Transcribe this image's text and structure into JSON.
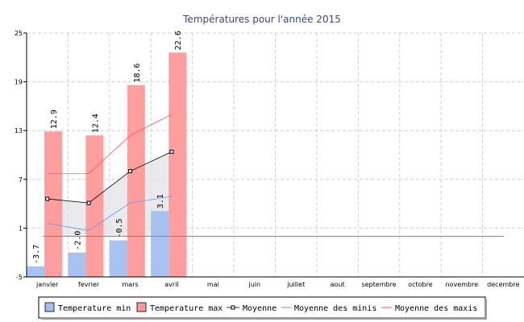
{
  "chart_data": {
    "type": "bar",
    "title": "Températures pour l'année 2015",
    "categories": [
      "janvier",
      "fevrier",
      "mars",
      "avril",
      "mai",
      "juin",
      "juillet",
      "aout",
      "septembre",
      "octobre",
      "novembre",
      "decembre"
    ],
    "series": [
      {
        "name": "Temperature min",
        "kind": "bar",
        "color": "#a3bff0",
        "values": [
          -3.7,
          -2.0,
          -0.5,
          3.1,
          null,
          null,
          null,
          null,
          null,
          null,
          null,
          null
        ],
        "labels": [
          "-3.7",
          "-2.0",
          "-0.5",
          "3.1"
        ]
      },
      {
        "name": "Temperature max",
        "kind": "bar",
        "color": "#ff9999",
        "values": [
          12.9,
          12.4,
          18.6,
          22.6,
          null,
          null,
          null,
          null,
          null,
          null,
          null,
          null
        ],
        "labels": [
          "12.9",
          "12.4",
          "18.6",
          "22.6"
        ]
      },
      {
        "name": "Moyenne",
        "kind": "line",
        "color": "#000000",
        "marker": "square",
        "values": [
          4.6,
          4.1,
          8.0,
          10.4,
          null,
          null,
          null,
          null,
          null,
          null,
          null,
          null
        ]
      },
      {
        "name": "Moyenne des minis",
        "kind": "line",
        "color": "#6495ed",
        "values": [
          1.6,
          0.7,
          4.1,
          4.9,
          null,
          null,
          null,
          null,
          null,
          null,
          null,
          null
        ]
      },
      {
        "name": "Moyenne des maxis",
        "kind": "line",
        "color": "#ff5555",
        "values": [
          7.7,
          7.7,
          12.4,
          15.0,
          null,
          null,
          null,
          null,
          null,
          null,
          null,
          null
        ]
      }
    ],
    "reference_line": {
      "value": 0,
      "color": "#888888"
    },
    "ylim": [
      -5,
      25
    ],
    "yticks": [
      "-5",
      "1",
      "7",
      "13",
      "19",
      "25"
    ],
    "grid": true,
    "legend_position": "bottom"
  }
}
